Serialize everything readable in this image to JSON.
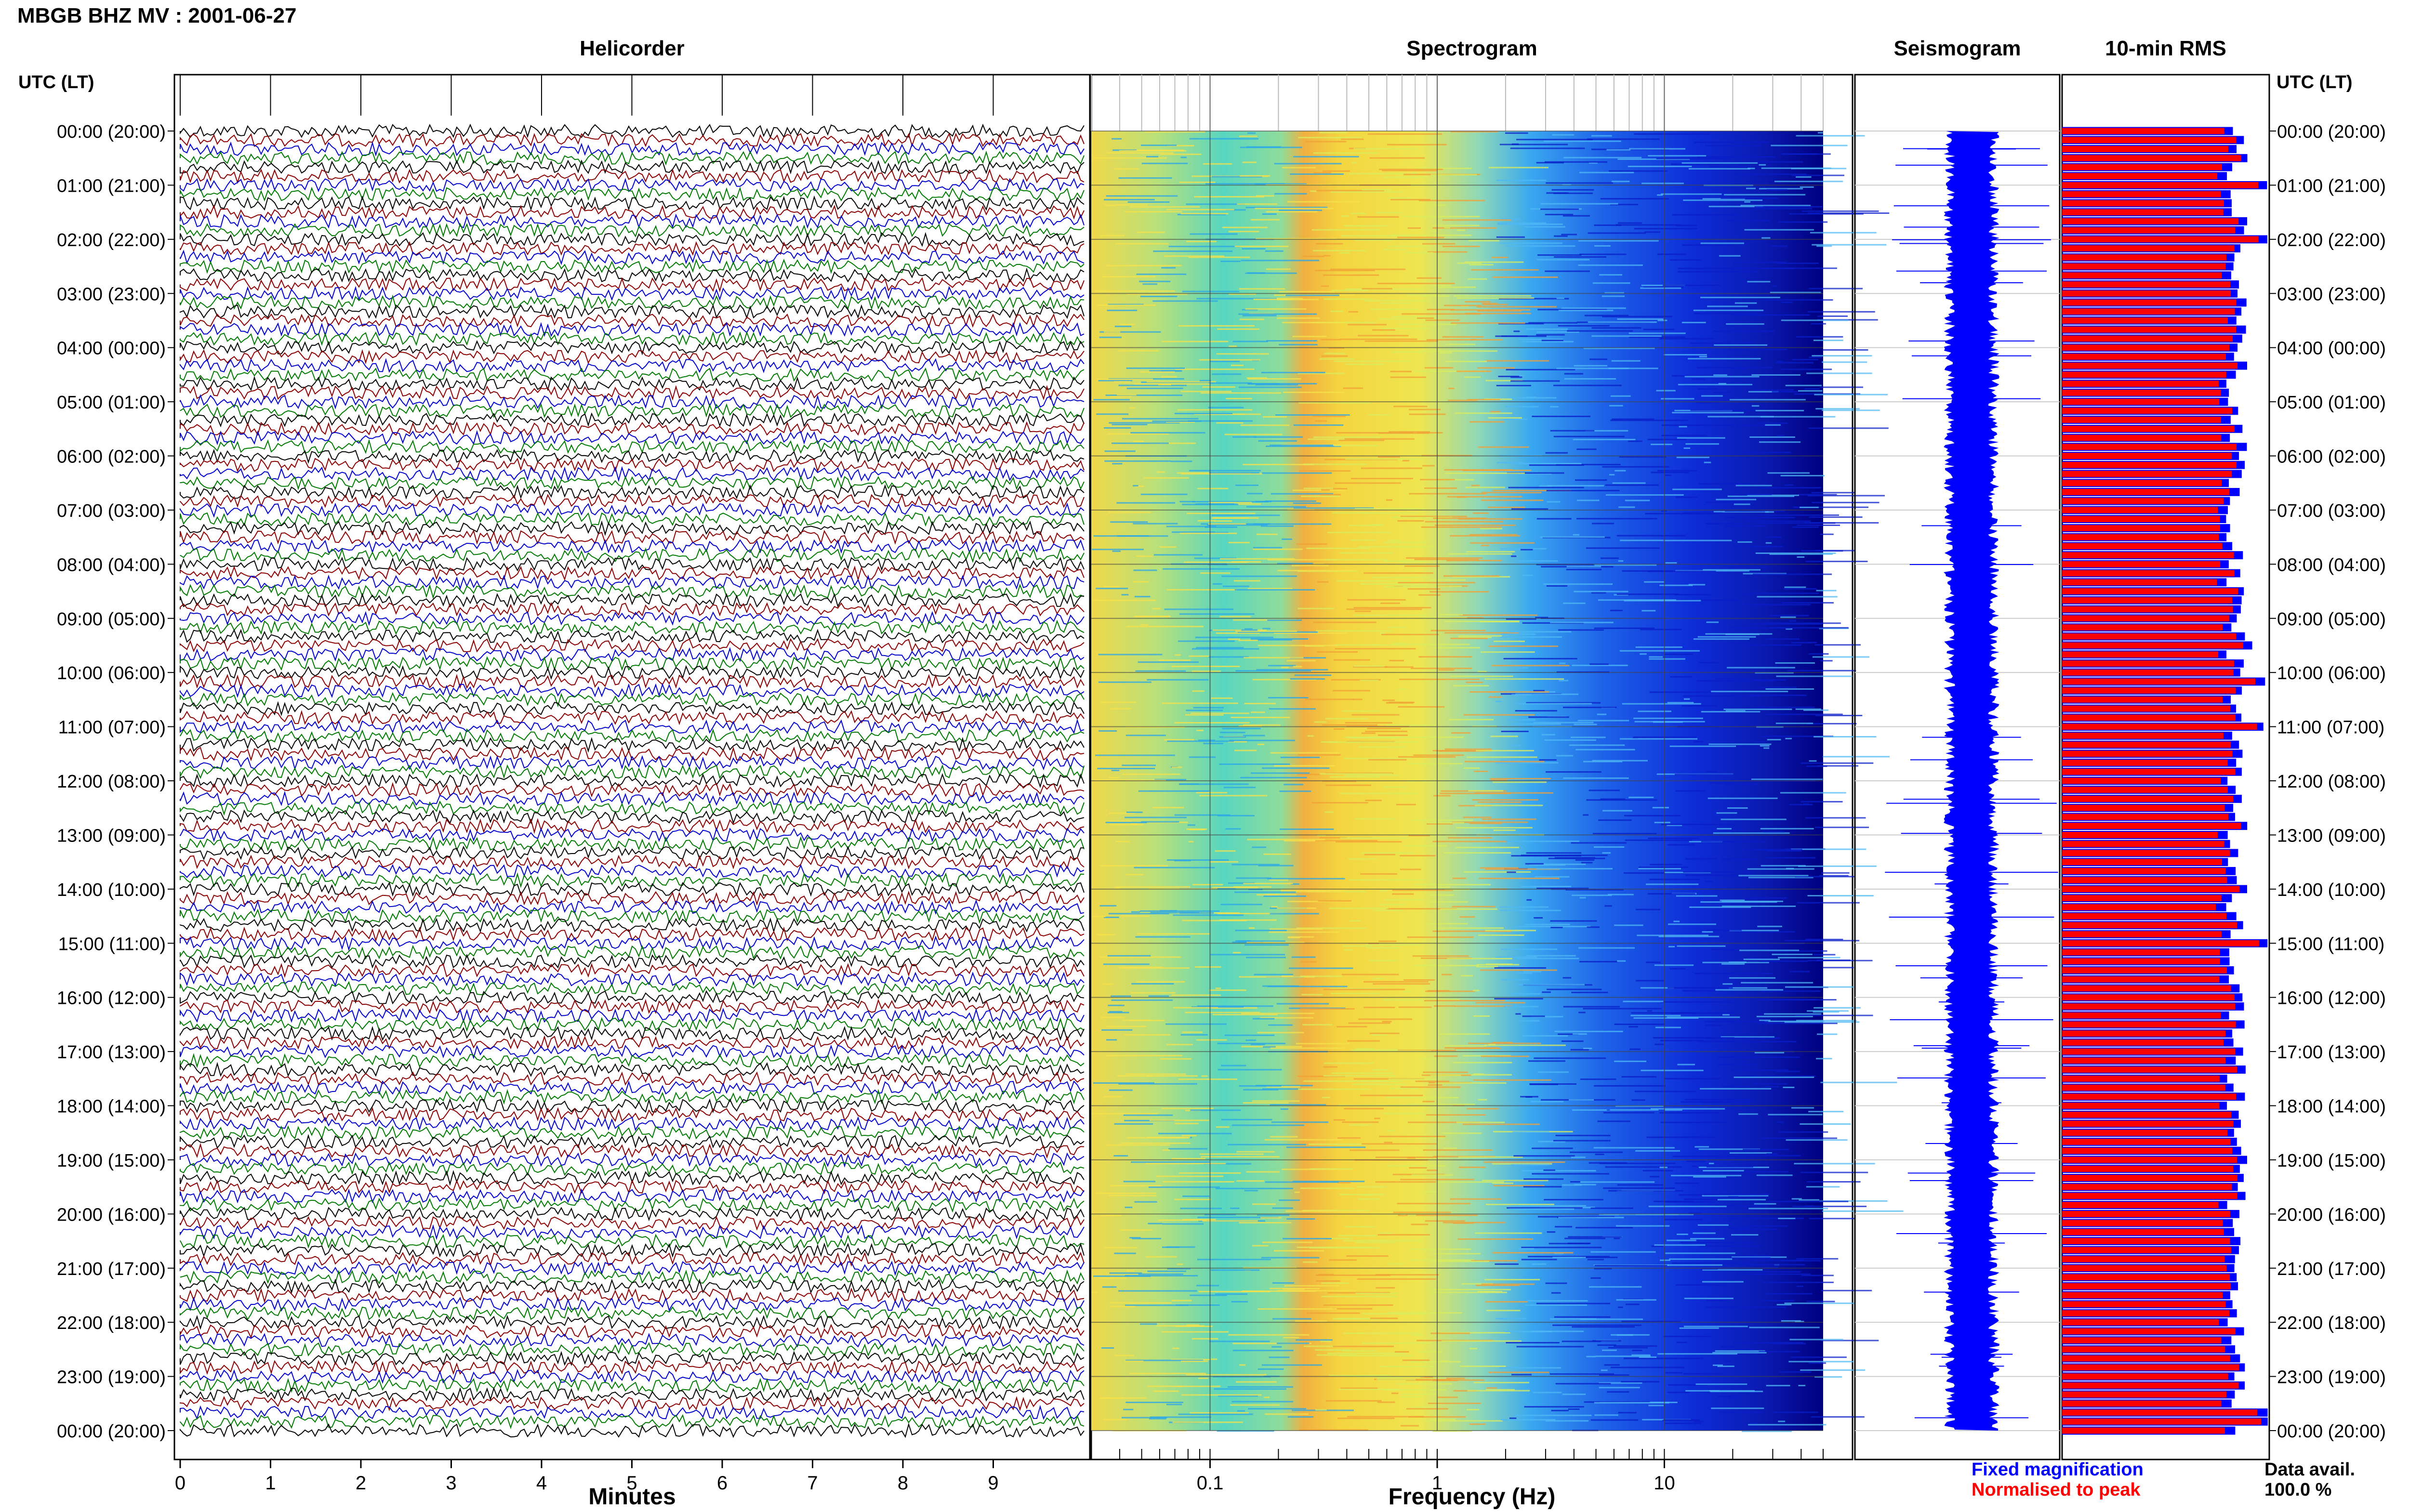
{
  "title": "MBGB BHZ MV : 2001-06-27",
  "panels": {
    "helicorder": "Helicorder",
    "spectrogram": "Spectrogram",
    "seismogram": "Seismogram",
    "rms": "10-min RMS"
  },
  "utc_header": "UTC (LT)",
  "time_labels": [
    "00:00 (20:00)",
    "01:00 (21:00)",
    "02:00 (22:00)",
    "03:00 (23:00)",
    "04:00 (00:00)",
    "05:00 (01:00)",
    "06:00 (02:00)",
    "07:00 (03:00)",
    "08:00 (04:00)",
    "09:00 (05:00)",
    "10:00 (06:00)",
    "11:00 (07:00)",
    "12:00 (08:00)",
    "13:00 (09:00)",
    "14:00 (10:00)",
    "15:00 (11:00)",
    "16:00 (12:00)",
    "17:00 (13:00)",
    "18:00 (14:00)",
    "19:00 (15:00)",
    "20:00 (16:00)",
    "21:00 (17:00)",
    "22:00 (18:00)",
    "23:00 (19:00)",
    "00:00 (20:00)"
  ],
  "legend": {
    "fixed": "Fixed magnification",
    "normalised": "Normalised to peak",
    "data_avail_label": "Data avail.",
    "data_avail_value": "100.0 %"
  },
  "colors": {
    "trace_colors": [
      "#000000",
      "#8b0000",
      "#0000cc",
      "#007a00"
    ],
    "fixed": "#0000ff",
    "normalised": "#ff0000",
    "spectro_low": "#00007f",
    "spectro_high": "#ff3300"
  },
  "chart_data": [
    {
      "type": "line",
      "panel": "helicorder",
      "xlabel": "Minutes",
      "x_ticks": [
        "0",
        "1",
        "2",
        "3",
        "4",
        "5",
        "6",
        "7",
        "8",
        "9"
      ],
      "xlim": [
        0,
        10
      ],
      "lines_count": 144,
      "minutes_per_line": 10
    },
    {
      "type": "heatmap",
      "panel": "spectrogram",
      "xlabel": "Frequency (Hz)",
      "x_scale": "log",
      "x_ticks": [
        "0.1",
        "1",
        "10"
      ],
      "xlim": [
        0.03,
        50
      ]
    },
    {
      "type": "line",
      "panel": "seismogram"
    },
    {
      "type": "bar",
      "panel": "rms",
      "orientation": "horizontal",
      "series": [
        {
          "name": "Fixed magnification",
          "color": "#0000ff"
        },
        {
          "name": "Normalised to peak",
          "color": "#ff0000"
        }
      ]
    }
  ]
}
